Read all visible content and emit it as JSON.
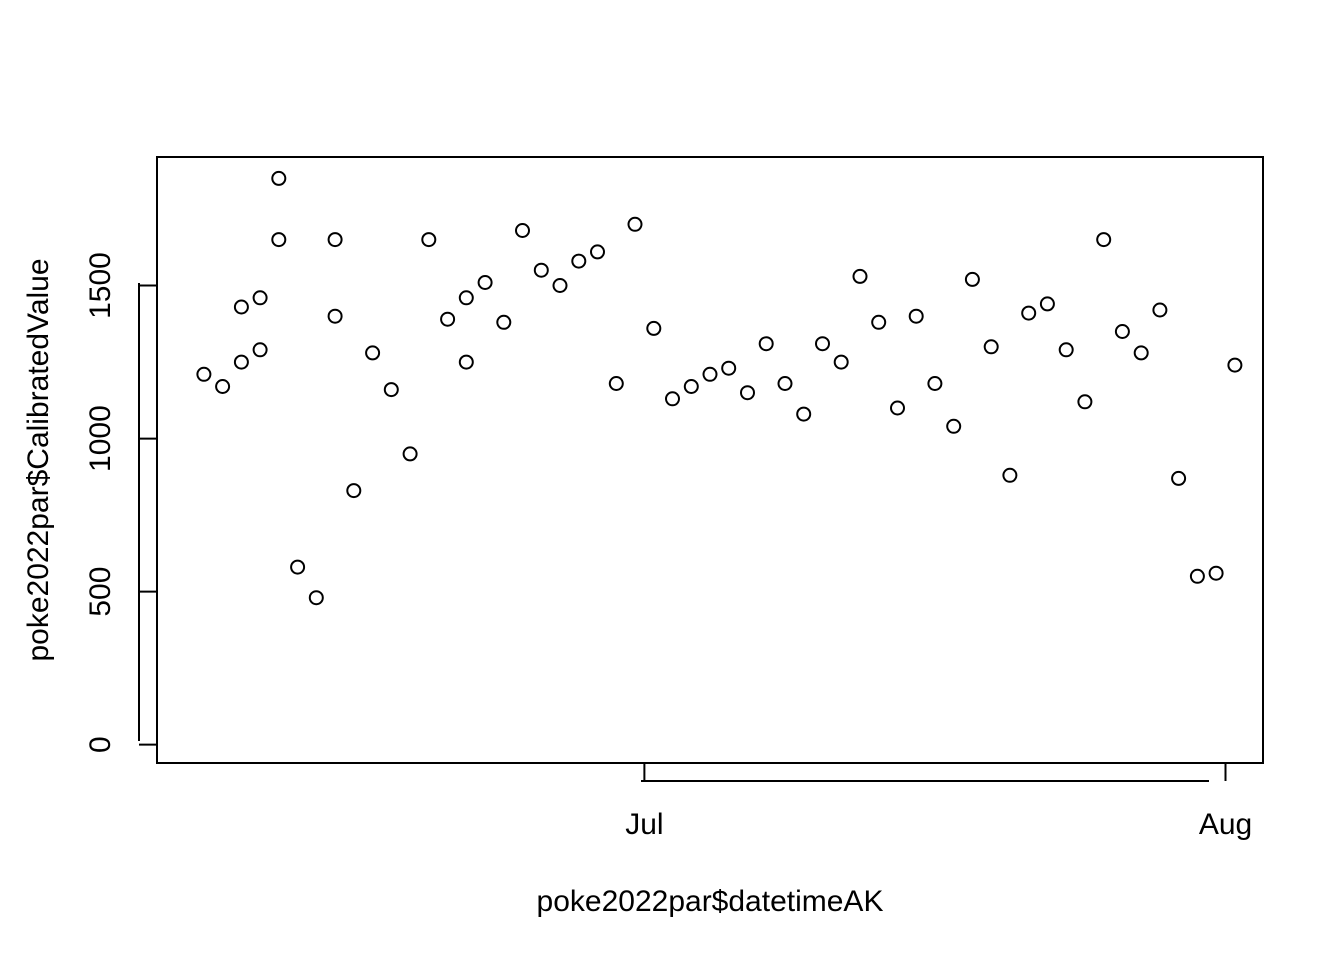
{
  "chart_data": {
    "type": "scatter",
    "title": "",
    "xlabel": "poke2022par$datetimeAK",
    "ylabel": "poke2022par$CalibratedValue",
    "xlim": [
      "2022-06-05",
      "2022-08-03"
    ],
    "ylim": [
      -60,
      1920
    ],
    "x_ticks": [
      {
        "value": "2022-07-01",
        "label": "Jul"
      },
      {
        "value": "2022-08-01",
        "label": "Aug"
      }
    ],
    "y_ticks": [
      {
        "value": 0,
        "label": "0"
      },
      {
        "value": 500,
        "label": "500"
      },
      {
        "value": 1000,
        "label": "1000"
      },
      {
        "value": 1500,
        "label": "1500"
      }
    ],
    "grid": false,
    "legend": "none",
    "marker": "open-circle",
    "series": [
      {
        "x": [
          "2022-06-07",
          "2022-06-08",
          "2022-06-09",
          "2022-06-09",
          "2022-06-10",
          "2022-06-10",
          "2022-06-11",
          "2022-06-11",
          "2022-06-12",
          "2022-06-13",
          "2022-06-14",
          "2022-06-14",
          "2022-06-15",
          "2022-06-16",
          "2022-06-17",
          "2022-06-18",
          "2022-06-19",
          "2022-06-20",
          "2022-06-21",
          "2022-06-21",
          "2022-06-22",
          "2022-06-23",
          "2022-06-24",
          "2022-06-25",
          "2022-06-26",
          "2022-06-27",
          "2022-06-28",
          "2022-06-29",
          "2022-06-30",
          "2022-07-01",
          "2022-07-02",
          "2022-07-03",
          "2022-07-04",
          "2022-07-05",
          "2022-07-06",
          "2022-07-07",
          "2022-07-08",
          "2022-07-09",
          "2022-07-10",
          "2022-07-11",
          "2022-07-12",
          "2022-07-13",
          "2022-07-14",
          "2022-07-15",
          "2022-07-16",
          "2022-07-17",
          "2022-07-18",
          "2022-07-19",
          "2022-07-20",
          "2022-07-21",
          "2022-07-22",
          "2022-07-23",
          "2022-07-24",
          "2022-07-25",
          "2022-07-26",
          "2022-07-27",
          "2022-07-28",
          "2022-07-29",
          "2022-07-30",
          "2022-07-31",
          "2022-08-01"
        ],
        "y": [
          1210,
          1170,
          1430,
          1250,
          1460,
          1290,
          1850,
          1650,
          580,
          480,
          1650,
          1400,
          830,
          1280,
          1160,
          950,
          1650,
          1390,
          1460,
          1250,
          1510,
          1380,
          1680,
          1550,
          1500,
          1580,
          1610,
          1180,
          1700,
          1360,
          1130,
          1170,
          1210,
          1230,
          1150,
          1310,
          1180,
          1080,
          1310,
          1250,
          1530,
          1380,
          1100,
          1400,
          1180,
          1040,
          1520,
          1300,
          880,
          1410,
          1440,
          1290,
          1120,
          1650,
          1350,
          1280,
          1420,
          870,
          550,
          560,
          1240
        ]
      }
    ]
  }
}
